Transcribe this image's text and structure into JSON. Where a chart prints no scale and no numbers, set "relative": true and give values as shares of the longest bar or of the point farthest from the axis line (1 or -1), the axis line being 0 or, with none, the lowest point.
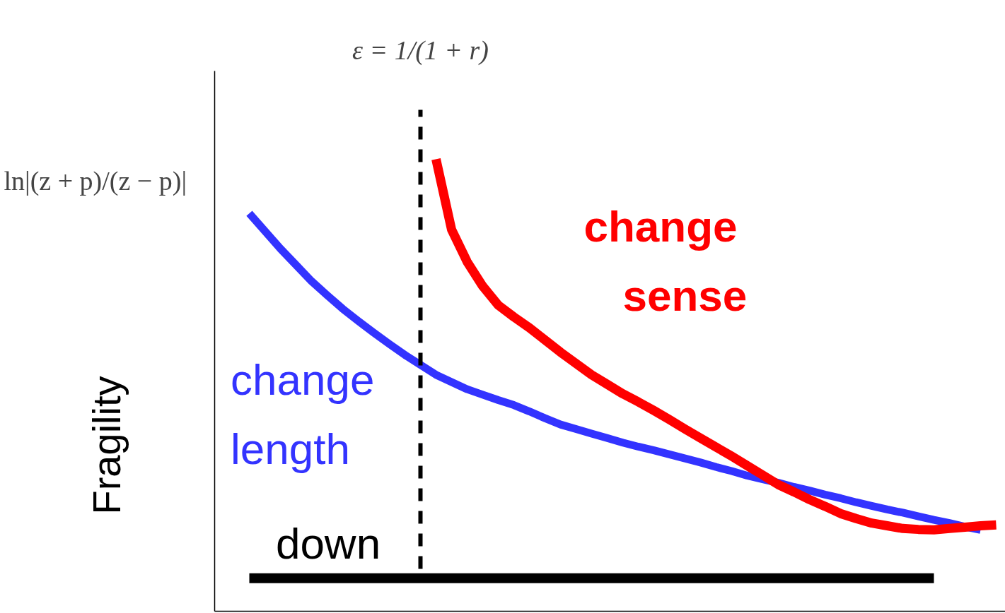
{
  "chart_data": {
    "type": "line",
    "relative": true,
    "ylabel": "Fragility",
    "categories": [
      null,
      null,
      null,
      null,
      null,
      null,
      null,
      null,
      null,
      null,
      null,
      null,
      null,
      null,
      null,
      null,
      null,
      null,
      null,
      null,
      null,
      null,
      null,
      null,
      null,
      null,
      null,
      null,
      null,
      null,
      null,
      null,
      null,
      null,
      null,
      null,
      null,
      null,
      null,
      null,
      null,
      null,
      null,
      null,
      null,
      null,
      null,
      null,
      null
    ],
    "series": [
      {
        "name": "change length",
        "color": "#3333ff",
        "values": [
          0.88,
          0.841,
          0.802,
          0.766,
          0.73,
          0.699,
          0.669,
          0.642,
          0.616,
          0.591,
          0.567,
          0.545,
          0.523,
          0.507,
          0.491,
          0.479,
          0.467,
          0.456,
          0.442,
          0.427,
          0.413,
          0.403,
          0.393,
          0.383,
          0.373,
          0.364,
          0.356,
          0.347,
          0.338,
          0.329,
          0.319,
          0.31,
          0.3,
          0.292,
          0.284,
          0.275,
          0.267,
          0.258,
          0.25,
          0.241,
          0.233,
          0.225,
          0.218,
          0.21,
          0.202,
          0.195,
          0.187,
          0.18,
          null
        ]
      },
      {
        "name": "change sense",
        "color": "#ff0000",
        "values": [
          null,
          null,
          null,
          null,
          null,
          null,
          null,
          null,
          null,
          null,
          null,
          null,
          1,
          0.844,
          0.773,
          0.719,
          0.677,
          0.651,
          0.627,
          0.6,
          0.573,
          0.548,
          0.523,
          0.502,
          0.481,
          0.463,
          0.444,
          0.424,
          0.403,
          0.383,
          0.363,
          0.343,
          0.322,
          0.301,
          0.28,
          0.264,
          0.247,
          0.232,
          0.216,
          0.205,
          0.195,
          0.189,
          0.183,
          0.181,
          0.18,
          0.183,
          0.186,
          0.189,
          0.191
        ]
      },
      {
        "name": "down",
        "color": "#000000",
        "values": [
          0.073,
          0.073,
          0.073,
          0.073,
          0.073,
          0.073,
          0.073,
          0.073,
          0.073,
          0.073,
          0.073,
          0.073,
          0.073,
          0.073,
          0.073,
          0.073,
          0.073,
          0.073,
          0.073,
          0.073,
          0.073,
          0.073,
          0.073,
          0.073,
          0.073,
          0.073,
          0.073,
          0.073,
          0.073,
          0.073,
          0.073,
          0.073,
          0.073,
          0.073,
          0.073,
          0.073,
          0.073,
          0.073,
          0.073,
          0.073,
          0.073,
          0.073,
          0.073,
          0.073,
          0.073,
          null,
          null,
          null,
          null
        ]
      }
    ],
    "annotations": [
      "ln|(z + p)/(z − p)|",
      "ε = 1/(1 + r)"
    ],
    "legend": false
  }
}
